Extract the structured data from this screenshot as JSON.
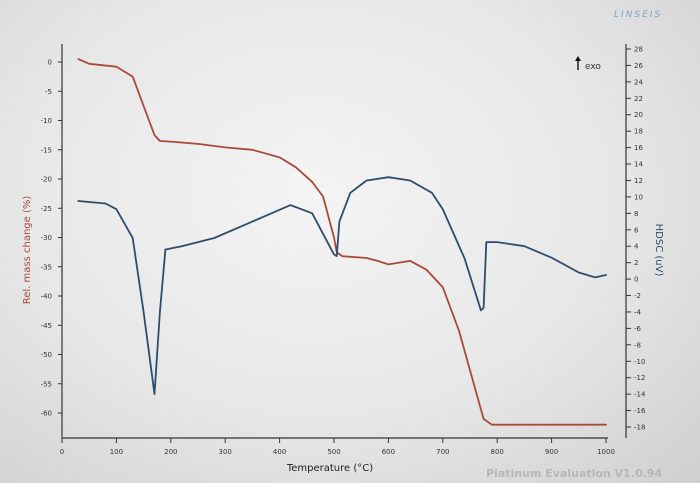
{
  "brand": "LINSEIS",
  "watermark": "Platinum Evaluation V1.0.94",
  "chart_data": {
    "type": "line",
    "xlabel": "Temperature (°C)",
    "xlim": [
      0,
      1000
    ],
    "x_ticks": [
      0,
      100,
      200,
      300,
      400,
      500,
      600,
      700,
      800,
      900,
      1000
    ],
    "left_axis": {
      "label": "Rel. mass change (%)",
      "ylim": [
        -66,
        3
      ],
      "ticks": [
        0,
        -5,
        -10,
        -15,
        -20,
        -25,
        -30,
        -35,
        -40,
        -45,
        -50,
        -55,
        -60
      ]
    },
    "right_axis": {
      "label": "HDSC (uV)",
      "ylim": [
        -20,
        28
      ],
      "ticks": [
        28,
        26,
        24,
        22,
        20,
        18,
        16,
        14,
        12,
        10,
        8,
        6,
        4,
        2,
        0,
        -2,
        -4,
        -6,
        -8,
        -10,
        -12,
        -14,
        -16,
        -18
      ]
    },
    "exo_label": "exo",
    "series": [
      {
        "color": "#a84a3a",
        "axis": "left",
        "x": [
          30,
          50,
          100,
          130,
          150,
          170,
          180,
          200,
          250,
          300,
          350,
          400,
          430,
          460,
          480,
          500,
          505,
          515,
          560,
          580,
          600,
          640,
          670,
          700,
          730,
          760,
          775,
          790,
          850,
          900,
          950,
          1000
        ],
        "y": [
          0.5,
          -0.3,
          -0.8,
          -2.5,
          -7.5,
          -12.5,
          -13.5,
          -13.6,
          -14.0,
          -14.6,
          -15.0,
          -16.3,
          -18.0,
          -20.5,
          -23.0,
          -30.0,
          -32.5,
          -33.2,
          -33.5,
          -34.0,
          -34.6,
          -34.0,
          -35.5,
          -38.5,
          -46.0,
          -56.0,
          -61.0,
          -62.0,
          -62.0,
          -62.0,
          -62.0,
          -62.0
        ]
      },
      {
        "color": "#2d4d6b",
        "axis": "right",
        "x": [
          30,
          80,
          100,
          130,
          150,
          170,
          180,
          190,
          220,
          280,
          350,
          420,
          440,
          460,
          480,
          500,
          505,
          510,
          530,
          560,
          600,
          640,
          680,
          700,
          740,
          770,
          775,
          780,
          800,
          850,
          900,
          950,
          980,
          1000
        ],
        "y": [
          9.5,
          9.2,
          8.5,
          5.0,
          -4.0,
          -14.0,
          -4.0,
          3.6,
          4.0,
          5.0,
          7.0,
          9.0,
          8.5,
          8.0,
          5.5,
          3.0,
          2.8,
          7.0,
          10.5,
          12.0,
          12.4,
          12.0,
          10.5,
          8.5,
          2.5,
          -3.8,
          -3.5,
          4.5,
          4.5,
          4.0,
          2.6,
          0.8,
          0.2,
          0.5
        ]
      }
    ]
  }
}
